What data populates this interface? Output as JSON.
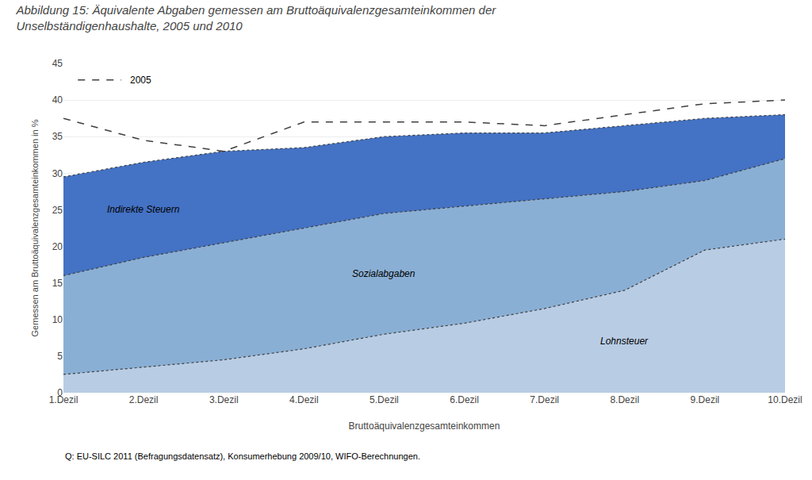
{
  "chart_data": {
    "type": "area",
    "title": "Abbildung 15: Äquivalente Abgaben gemessen am Bruttoäquivalenzgesamteinkommen der Unselbständigenhaushalte, 2005 und 2010",
    "x_label": "Bruttoäquivalenzgesamteinkommen",
    "y_label": "Gemessen am Bruttoäquivalenzgesamteinkommen in %",
    "annotations": [
      "Q: EU-SILC 2011 (Befragungsdatensatz), Konsumerhebung 2009/10, WIFO-Berechnungen."
    ],
    "categories": [
      "1.Dezil",
      "2.Dezil",
      "3.Dezil",
      "4.Dezil",
      "5.Dezil",
      "6.Dezil",
      "7.Dezil",
      "8.Dezil",
      "9.Dezil",
      "10.Dezil"
    ],
    "series": [
      {
        "name": "Indirekte Steuern",
        "color": "#4472c4",
        "type": "area",
        "line_style": "dotted",
        "values": [
          29.5,
          31.5,
          33.0,
          33.5,
          35.0,
          35.5,
          35.5,
          36.5,
          37.5,
          38.0
        ]
      },
      {
        "name": "Sozialabgaben",
        "color": "#8aafd4",
        "type": "area",
        "line_style": "dotted",
        "values": [
          16.0,
          18.5,
          20.5,
          22.5,
          24.5,
          25.5,
          26.5,
          27.5,
          29.0,
          32.0
        ]
      },
      {
        "name": "Lohnsteuer",
        "color": "#b8cce4",
        "type": "area",
        "line_style": "dotted",
        "values": [
          2.5,
          3.5,
          4.5,
          6.0,
          8.0,
          9.5,
          11.5,
          14.0,
          19.5,
          21.0
        ]
      },
      {
        "name": "2005",
        "color": "#404040",
        "type": "line",
        "line_style": "dashed",
        "values": [
          37.5,
          34.5,
          33.0,
          37.0,
          37.0,
          37.0,
          36.5,
          38.0,
          39.5,
          40.0
        ]
      }
    ],
    "stacked": false,
    "ylim": [
      0,
      45
    ],
    "yticks": [
      0,
      5,
      10,
      15,
      20,
      25,
      30,
      35,
      40,
      45
    ],
    "grid": true
  }
}
